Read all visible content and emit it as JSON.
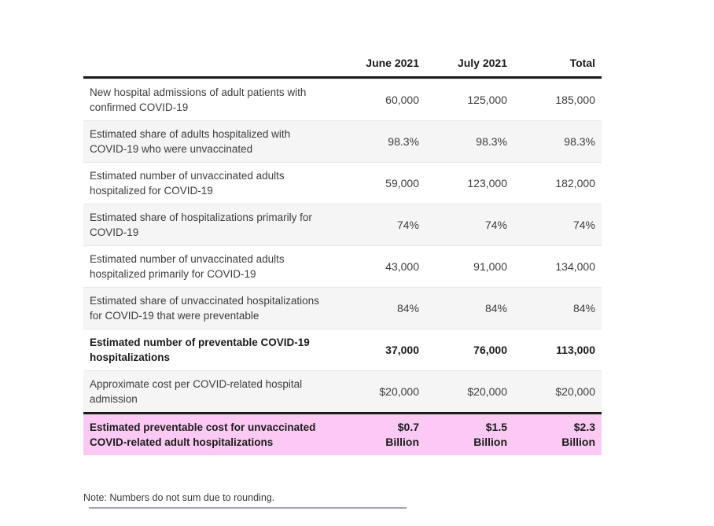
{
  "chart_data": {
    "type": "table",
    "columns": [
      "June 2021",
      "July 2021",
      "Total"
    ],
    "rows": [
      {
        "label": "New hospital admissions of adult patients with confirmed COVID-19",
        "values": [
          "60,000",
          "125,000",
          "185,000"
        ]
      },
      {
        "label": "Estimated share of adults hospitalized with COVID-19 who were unvaccinated",
        "values": [
          "98.3%",
          "98.3%",
          "98.3%"
        ]
      },
      {
        "label": "Estimated number of unvaccinated adults hospitalized for COVID-19",
        "values": [
          "59,000",
          "123,000",
          "182,000"
        ]
      },
      {
        "label": "Estimated share of hospitalizations primarily for COVID-19",
        "values": [
          "74%",
          "74%",
          "74%"
        ]
      },
      {
        "label": "Estimated number of unvaccinated adults hospitalized primarily for COVID-19",
        "values": [
          "43,000",
          "91,000",
          "134,000"
        ]
      },
      {
        "label": "Estimated share of unvaccinated hospitalizations for COVID-19 that were preventable",
        "values": [
          "84%",
          "84%",
          "84%"
        ]
      },
      {
        "label": "Estimated number of preventable COVID-19 hospitalizations",
        "values": [
          "37,000",
          "76,000",
          "113,000"
        ],
        "emphasis": true
      },
      {
        "label": "Approximate cost per COVID-related hospital admission",
        "values": [
          "$20,000",
          "$20,000",
          "$20,000"
        ]
      },
      {
        "label": "Estimated preventable cost for unvaccinated COVID-related adult hospitalizations",
        "values": [
          "$0.7\nBillion",
          "$1.5\nBillion",
          "$2.3\nBillion"
        ],
        "emphasis": true,
        "highlight": true
      }
    ],
    "note": "Note: Numbers do not sum due to rounding.",
    "layout": {
      "legend_position": "none",
      "grid": "row-striped"
    }
  },
  "colors": {
    "highlight_row_background": "#fcc9f4",
    "alternate_row_background": "#f5f5f6",
    "header_rule": "#1c1c1c",
    "note_rule": "#a9a2b8"
  }
}
